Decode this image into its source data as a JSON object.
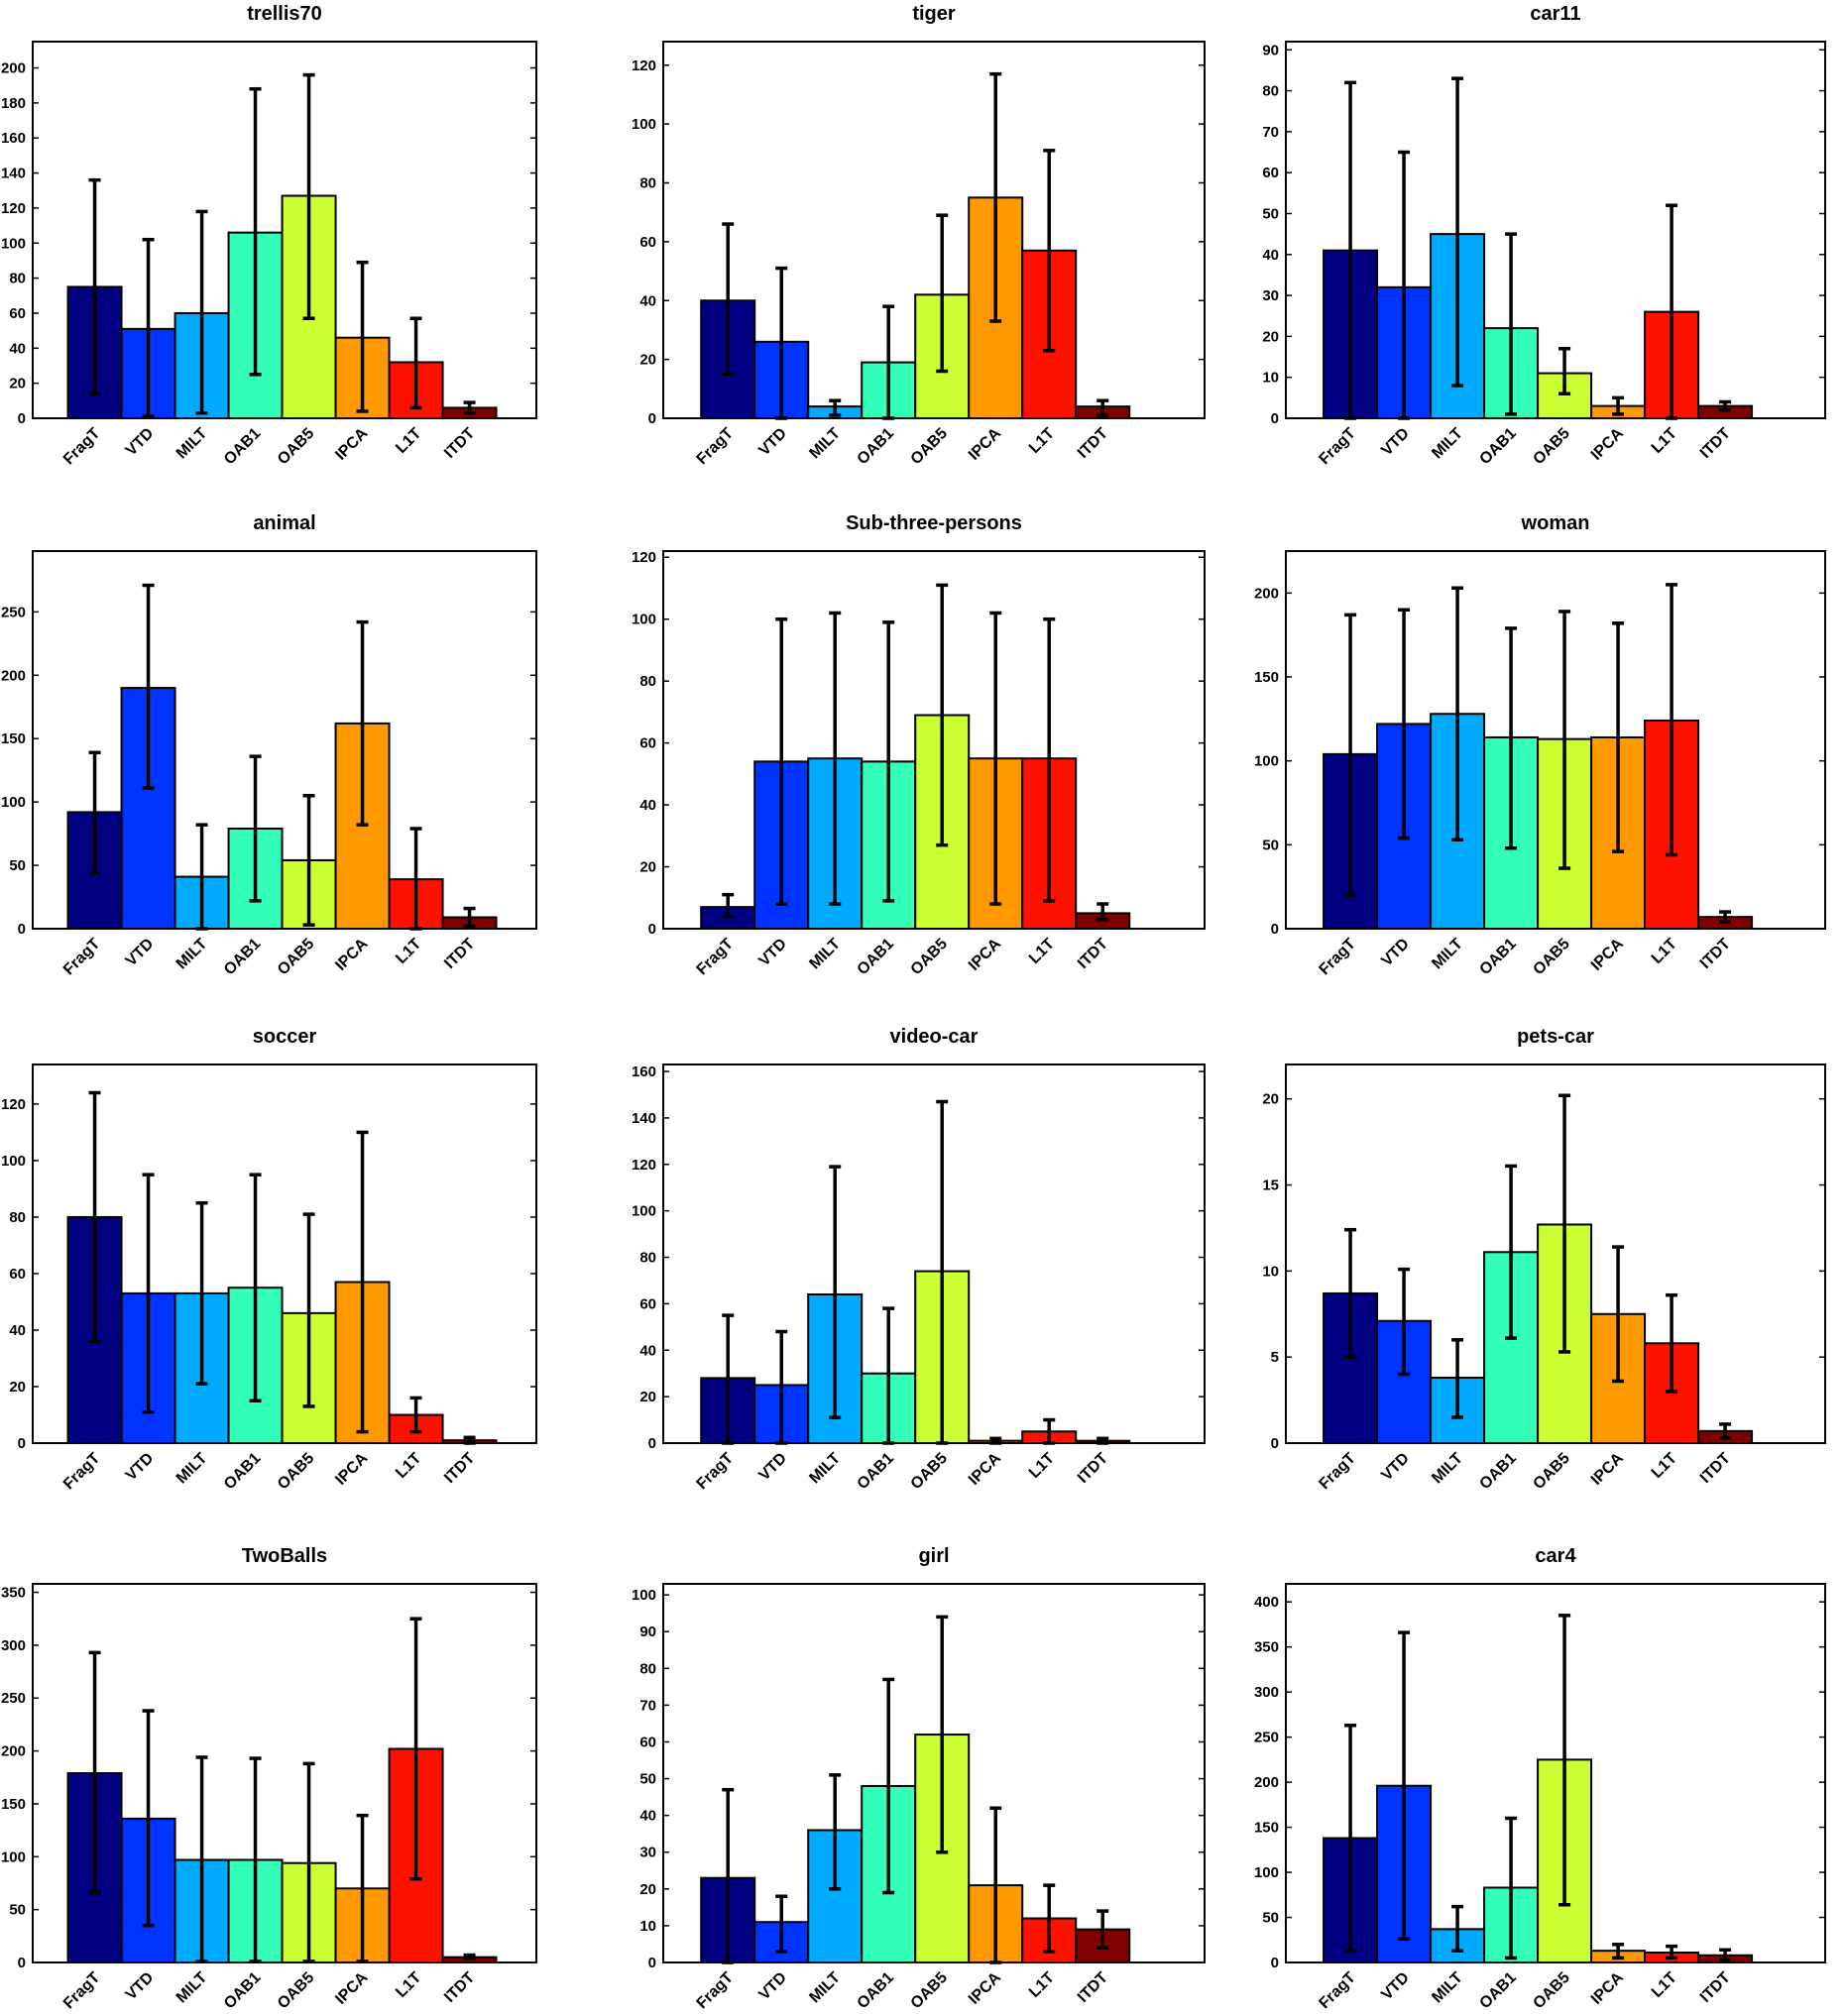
{
  "colors": [
    "#000080",
    "#0033ff",
    "#00aaff",
    "#33ffbb",
    "#ccff33",
    "#ff9900",
    "#ff1100",
    "#800000"
  ],
  "chart_data": [
    {
      "type": "bar",
      "title": "trellis70",
      "categories": [
        "FragT",
        "VTD",
        "MILT",
        "OAB1",
        "OAB5",
        "IPCA",
        "L1T",
        "ITDT"
      ],
      "values": [
        75,
        51,
        60,
        106,
        127,
        46,
        32,
        6
      ],
      "error_low": [
        14,
        1,
        3,
        25,
        57,
        4,
        6,
        3
      ],
      "error_high": [
        136,
        102,
        118,
        188,
        196,
        89,
        57,
        9
      ],
      "yticks": [
        0,
        20,
        40,
        60,
        80,
        100,
        120,
        140,
        160,
        180,
        200
      ],
      "ylim": [
        0,
        215
      ],
      "xlabel": "",
      "ylabel": ""
    },
    {
      "type": "bar",
      "title": "tiger",
      "categories": [
        "FragT",
        "VTD",
        "MILT",
        "OAB1",
        "OAB5",
        "IPCA",
        "L1T",
        "ITDT"
      ],
      "values": [
        40,
        26,
        4,
        19,
        42,
        75,
        57,
        4
      ],
      "error_low": [
        15,
        0,
        1,
        0,
        16,
        33,
        23,
        1
      ],
      "error_high": [
        66,
        51,
        6,
        38,
        69,
        117,
        91,
        6
      ],
      "yticks": [
        0,
        20,
        40,
        60,
        80,
        100,
        120
      ],
      "ylim": [
        0,
        128
      ],
      "xlabel": "",
      "ylabel": ""
    },
    {
      "type": "bar",
      "title": "car11",
      "categories": [
        "FragT",
        "VTD",
        "MILT",
        "OAB1",
        "OAB5",
        "IPCA",
        "L1T",
        "ITDT"
      ],
      "values": [
        41,
        32,
        45,
        22,
        11,
        3,
        26,
        3
      ],
      "error_low": [
        0,
        0,
        8,
        1,
        6,
        1,
        0,
        2
      ],
      "error_high": [
        82,
        65,
        83,
        45,
        17,
        5,
        52,
        4
      ],
      "yticks": [
        0,
        10,
        20,
        30,
        40,
        50,
        60,
        70,
        80,
        90
      ],
      "ylim": [
        0,
        92
      ],
      "xlabel": "",
      "ylabel": ""
    },
    {
      "type": "bar",
      "title": "animal",
      "categories": [
        "FragT",
        "VTD",
        "MILT",
        "OAB1",
        "OAB5",
        "IPCA",
        "L1T",
        "ITDT"
      ],
      "values": [
        92,
        190,
        41,
        79,
        54,
        162,
        39,
        9
      ],
      "error_low": [
        44,
        111,
        0,
        22,
        3,
        82,
        0,
        2
      ],
      "error_high": [
        139,
        271,
        82,
        136,
        105,
        242,
        79,
        16
      ],
      "yticks": [
        0,
        50,
        100,
        150,
        200,
        250
      ],
      "ylim": [
        0,
        298
      ],
      "xlabel": "",
      "ylabel": ""
    },
    {
      "type": "bar",
      "title": "Sub-three-persons",
      "categories": [
        "FragT",
        "VTD",
        "MILT",
        "OAB1",
        "OAB5",
        "IPCA",
        "L1T",
        "ITDT"
      ],
      "values": [
        7,
        54,
        55,
        54,
        69,
        55,
        55,
        5
      ],
      "error_low": [
        4,
        8,
        8,
        9,
        27,
        8,
        9,
        3
      ],
      "error_high": [
        11,
        100,
        102,
        99,
        111,
        102,
        100,
        8
      ],
      "yticks": [
        0,
        20,
        40,
        60,
        80,
        100,
        120
      ],
      "ylim": [
        0,
        122
      ],
      "xlabel": "",
      "ylabel": ""
    },
    {
      "type": "bar",
      "title": "woman",
      "categories": [
        "FragT",
        "VTD",
        "MILT",
        "OAB1",
        "OAB5",
        "IPCA",
        "L1T",
        "ITDT"
      ],
      "values": [
        104,
        122,
        128,
        114,
        113,
        114,
        124,
        7
      ],
      "error_low": [
        20,
        54,
        53,
        48,
        36,
        46,
        44,
        4
      ],
      "error_high": [
        187,
        190,
        203,
        179,
        189,
        182,
        205,
        10
      ],
      "yticks": [
        0,
        50,
        100,
        150,
        200
      ],
      "ylim": [
        0,
        225
      ],
      "xlabel": "",
      "ylabel": ""
    },
    {
      "type": "bar",
      "title": "soccer",
      "categories": [
        "FragT",
        "VTD",
        "MILT",
        "OAB1",
        "OAB5",
        "IPCA",
        "L1T",
        "ITDT"
      ],
      "values": [
        80,
        53,
        53,
        55,
        46,
        57,
        10,
        1
      ],
      "error_low": [
        36,
        11,
        21,
        15,
        13,
        4,
        4,
        0
      ],
      "error_high": [
        124,
        95,
        85,
        95,
        81,
        110,
        16,
        2
      ],
      "yticks": [
        0,
        20,
        40,
        60,
        80,
        100,
        120
      ],
      "ylim": [
        0,
        134
      ],
      "xlabel": "",
      "ylabel": ""
    },
    {
      "type": "bar",
      "title": "video-car",
      "categories": [
        "FragT",
        "VTD",
        "MILT",
        "OAB1",
        "OAB5",
        "IPCA",
        "L1T",
        "ITDT"
      ],
      "values": [
        28,
        25,
        64,
        30,
        74,
        1,
        5,
        1
      ],
      "error_low": [
        0,
        0,
        11,
        0,
        0,
        0,
        0,
        0
      ],
      "error_high": [
        55,
        48,
        119,
        58,
        147,
        2,
        10,
        2
      ],
      "yticks": [
        0,
        20,
        40,
        60,
        80,
        100,
        120,
        140,
        160
      ],
      "ylim": [
        0,
        163
      ],
      "xlabel": "",
      "ylabel": ""
    },
    {
      "type": "bar",
      "title": "pets-car",
      "categories": [
        "FragT",
        "VTD",
        "MILT",
        "OAB1",
        "OAB5",
        "IPCA",
        "L1T",
        "ITDT"
      ],
      "values": [
        8.7,
        7.1,
        3.8,
        11.1,
        12.7,
        7.5,
        5.8,
        0.7
      ],
      "error_low": [
        5.0,
        4.0,
        1.5,
        6.1,
        5.3,
        3.6,
        3.0,
        0.3
      ],
      "error_high": [
        12.4,
        10.1,
        6.0,
        16.1,
        20.2,
        11.4,
        8.6,
        1.1
      ],
      "yticks": [
        0,
        5,
        10,
        15,
        20
      ],
      "ylim": [
        0,
        22
      ],
      "xlabel": "",
      "ylabel": ""
    },
    {
      "type": "bar",
      "title": "TwoBalls",
      "categories": [
        "FragT",
        "VTD",
        "MILT",
        "OAB1",
        "OAB5",
        "IPCA",
        "L1T",
        "ITDT"
      ],
      "values": [
        179,
        136,
        97,
        97,
        94,
        70,
        202,
        5
      ],
      "error_low": [
        66,
        35,
        1,
        1,
        1,
        1,
        79,
        4
      ],
      "error_high": [
        293,
        238,
        194,
        193,
        188,
        139,
        325,
        7
      ],
      "yticks": [
        0,
        50,
        100,
        150,
        200,
        250,
        300,
        350
      ],
      "ylim": [
        0,
        358
      ],
      "xlabel": "",
      "ylabel": ""
    },
    {
      "type": "bar",
      "title": "girl",
      "categories": [
        "FragT",
        "VTD",
        "MILT",
        "OAB1",
        "OAB5",
        "IPCA",
        "L1T",
        "ITDT"
      ],
      "values": [
        23,
        11,
        36,
        48,
        62,
        21,
        12,
        9
      ],
      "error_low": [
        0,
        3,
        20,
        19,
        30,
        0,
        3,
        4
      ],
      "error_high": [
        47,
        18,
        51,
        77,
        94,
        42,
        21,
        14
      ],
      "yticks": [
        0,
        10,
        20,
        30,
        40,
        50,
        60,
        70,
        80,
        90,
        100
      ],
      "ylim": [
        0,
        103
      ],
      "xlabel": "",
      "ylabel": ""
    },
    {
      "type": "bar",
      "title": "car4",
      "categories": [
        "FragT",
        "VTD",
        "MILT",
        "OAB1",
        "OAB5",
        "IPCA",
        "L1T",
        "ITDT"
      ],
      "values": [
        138,
        196,
        37,
        83,
        225,
        13,
        11,
        8
      ],
      "error_low": [
        13,
        26,
        13,
        5,
        64,
        5,
        5,
        3
      ],
      "error_high": [
        263,
        366,
        62,
        160,
        385,
        20,
        18,
        14
      ],
      "yticks": [
        0,
        50,
        100,
        150,
        200,
        250,
        300,
        350,
        400
      ],
      "ylim": [
        0,
        420
      ],
      "xlabel": "",
      "ylabel": ""
    }
  ]
}
